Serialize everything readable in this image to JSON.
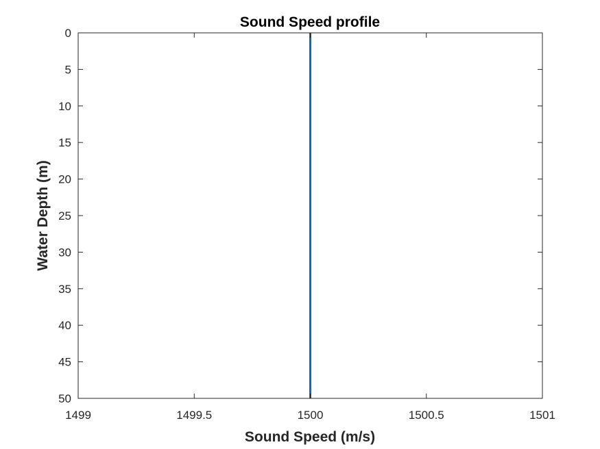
{
  "chart_data": {
    "type": "line",
    "title": "Sound Speed profile",
    "xlabel": "Sound Speed (m/s)",
    "ylabel": "Water Depth (m)",
    "xlim": [
      1499,
      1501
    ],
    "ylim": [
      0,
      50
    ],
    "y_reversed": true,
    "xticks": [
      1499,
      1499.5,
      1500,
      1500.5,
      1501
    ],
    "xtick_labels": [
      "1499",
      "1499.5",
      "1500",
      "1500.5",
      "1501"
    ],
    "yticks": [
      0,
      5,
      10,
      15,
      20,
      25,
      30,
      35,
      40,
      45,
      50
    ],
    "ytick_labels": [
      "0",
      "5",
      "10",
      "15",
      "20",
      "25",
      "30",
      "35",
      "40",
      "45",
      "50"
    ],
    "grid": false,
    "series": [
      {
        "color": "#0072BD",
        "x": [
          1500,
          1500
        ],
        "y": [
          0,
          50
        ]
      }
    ],
    "axis_color": "#262626"
  }
}
